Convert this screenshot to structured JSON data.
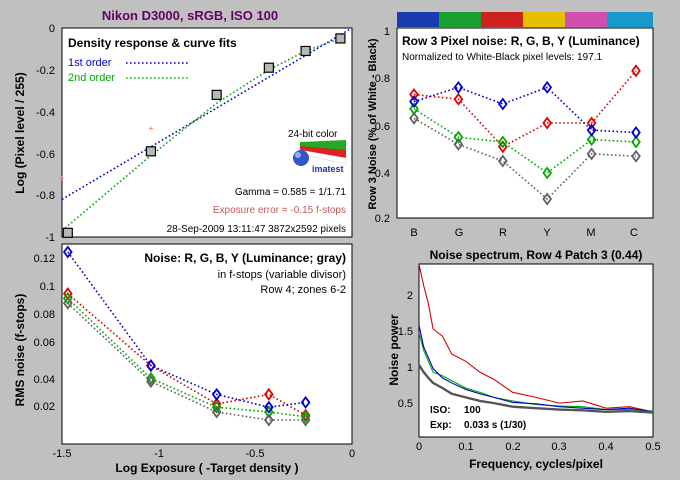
{
  "header": {
    "title": "Nikon D3000, sRGB, ISO 100"
  },
  "colors": {
    "background": "#c0c0c0",
    "blue": "#0000cc",
    "green": "#00aa00",
    "red": "#dd0000",
    "gray": "#606060",
    "yellow": "#ddbb00",
    "magenta": "#dd44aa",
    "cyan": "#1199cc"
  },
  "chart_data": [
    {
      "id": "density",
      "type": "scatter",
      "title": "Density response & curve fits",
      "xlabel": "",
      "ylabel": "Log (Pixel level / 255)",
      "xlim": [
        -1.5,
        0
      ],
      "ylim": [
        -1,
        0
      ],
      "y_ticks": [
        "0",
        "-0.2",
        "-0.4",
        "-0.6",
        "-0.8",
        "-1"
      ],
      "legend": [
        "1st order",
        "2nd order"
      ],
      "measured": {
        "x": [
          -1.47,
          -1.04,
          -0.7,
          -0.43,
          -0.24,
          -0.06
        ],
        "y": [
          -0.98,
          -0.59,
          -0.32,
          -0.19,
          -0.11,
          -0.05
        ]
      },
      "outliers": {
        "x": [
          -1.5,
          -1.04
        ],
        "y": [
          -0.72,
          -0.48
        ]
      },
      "fit_1st": {
        "x": [
          -1.5,
          0
        ],
        "y": [
          -0.82,
          0.05
        ]
      },
      "fit_2nd": {
        "x": [
          -1.5,
          -1.04,
          -0.7,
          -0.43,
          -0.24,
          -0.06
        ],
        "y": [
          -0.97,
          -0.61,
          -0.36,
          -0.2,
          -0.11,
          -0.05
        ]
      },
      "gamma": "Gamma = 0.585 = 1/1.71",
      "exposure_error": "Exposure error = -0.15 f-stops",
      "footer": "28-Sep-2009 13:11:47   3872x2592 pixels",
      "logo_caption": "24-bit color",
      "logo_text": "imatest"
    },
    {
      "id": "noise-rgby",
      "type": "line",
      "title": "Noise: R, G, B, Y (Luminance; gray)",
      "subtitle_1": "in f-stops (variable divisor)",
      "subtitle_2": "Row 4; zones 6-2",
      "xlabel": "Log Exposure ( -Target density )",
      "ylabel": "RMS noise (f-stops)",
      "xlim": [
        -1.5,
        0
      ],
      "ylim": [
        0,
        0.125
      ],
      "x_ticks": [
        "-1.5",
        "-1",
        "-0.5",
        "0"
      ],
      "y_ticks": [
        "0.12",
        "0.1",
        "0.08",
        "0.06",
        "0.04",
        "0.02"
      ],
      "x": [
        -1.47,
        -1.04,
        -0.7,
        -0.43,
        -0.24
      ],
      "series": [
        {
          "name": "R",
          "values": [
            0.094,
            0.049,
            0.025,
            0.031,
            0.018
          ]
        },
        {
          "name": "G",
          "values": [
            0.091,
            0.041,
            0.023,
            0.02,
            0.017
          ]
        },
        {
          "name": "B",
          "values": [
            0.12,
            0.049,
            0.031,
            0.023,
            0.026
          ]
        },
        {
          "name": "Y",
          "values": [
            0.088,
            0.039,
            0.02,
            0.015,
            0.015
          ]
        }
      ]
    },
    {
      "id": "row3-noise",
      "type": "line",
      "title": "Row 3 Pixel noise: R, G, B, Y (Luminance)",
      "subtitle": "Normalized to White-Black pixel levels: 197.1",
      "xlabel": "",
      "ylabel": "Row 3 Noise (% of White - Black)",
      "categories": [
        "B",
        "G",
        "R",
        "Y",
        "M",
        "C"
      ],
      "ylim": [
        0.2,
        1.0
      ],
      "y_ticks": [
        "1",
        "0.8",
        "0.6",
        "0.4",
        "0.2"
      ],
      "series": [
        {
          "name": "R",
          "values": [
            0.72,
            0.7,
            0.5,
            0.6,
            0.6,
            0.82
          ]
        },
        {
          "name": "G",
          "values": [
            0.66,
            0.54,
            0.52,
            0.39,
            0.53,
            0.52
          ]
        },
        {
          "name": "B",
          "values": [
            0.69,
            0.75,
            0.68,
            0.75,
            0.57,
            0.56
          ]
        },
        {
          "name": "Y",
          "values": [
            0.62,
            0.51,
            0.44,
            0.28,
            0.47,
            0.46
          ]
        }
      ]
    },
    {
      "id": "spectrum",
      "type": "line",
      "title": "Noise spectrum, Row 4 Patch 3 (0.44)",
      "xlabel": "Frequency, cycles/pixel",
      "ylabel": "Noise power",
      "xlim": [
        0,
        0.5
      ],
      "ylim": [
        0,
        2.4
      ],
      "x_ticks": [
        "0",
        "0.1",
        "0.2",
        "0.3",
        "0.4",
        "0.5"
      ],
      "y_ticks": [
        "2",
        "1.5",
        "1",
        "0.5"
      ],
      "iso_label": "ISO:",
      "iso_value": "100",
      "exp_label": "Exp:",
      "exp_value": "0.033 s  (1/30)",
      "x": [
        0.0,
        0.01,
        0.02,
        0.03,
        0.05,
        0.07,
        0.1,
        0.13,
        0.16,
        0.2,
        0.25,
        0.3,
        0.35,
        0.4,
        0.45,
        0.5
      ],
      "series": [
        {
          "name": "R",
          "values": [
            2.4,
            2.1,
            1.85,
            1.5,
            1.4,
            1.15,
            1.05,
            0.9,
            0.8,
            0.62,
            0.55,
            0.47,
            0.5,
            0.4,
            0.42,
            0.35
          ]
        },
        {
          "name": "G",
          "values": [
            1.45,
            1.2,
            1.05,
            0.9,
            0.85,
            0.78,
            0.68,
            0.62,
            0.55,
            0.5,
            0.45,
            0.43,
            0.42,
            0.38,
            0.38,
            0.36
          ]
        },
        {
          "name": "B",
          "values": [
            1.55,
            1.25,
            1.1,
            0.95,
            0.82,
            0.75,
            0.66,
            0.6,
            0.55,
            0.48,
            0.46,
            0.42,
            0.4,
            0.38,
            0.4,
            0.35
          ]
        },
        {
          "name": "Y",
          "values": [
            1.0,
            0.9,
            0.82,
            0.75,
            0.68,
            0.6,
            0.55,
            0.5,
            0.47,
            0.42,
            0.4,
            0.38,
            0.37,
            0.35,
            0.36,
            0.34
          ]
        }
      ]
    }
  ]
}
